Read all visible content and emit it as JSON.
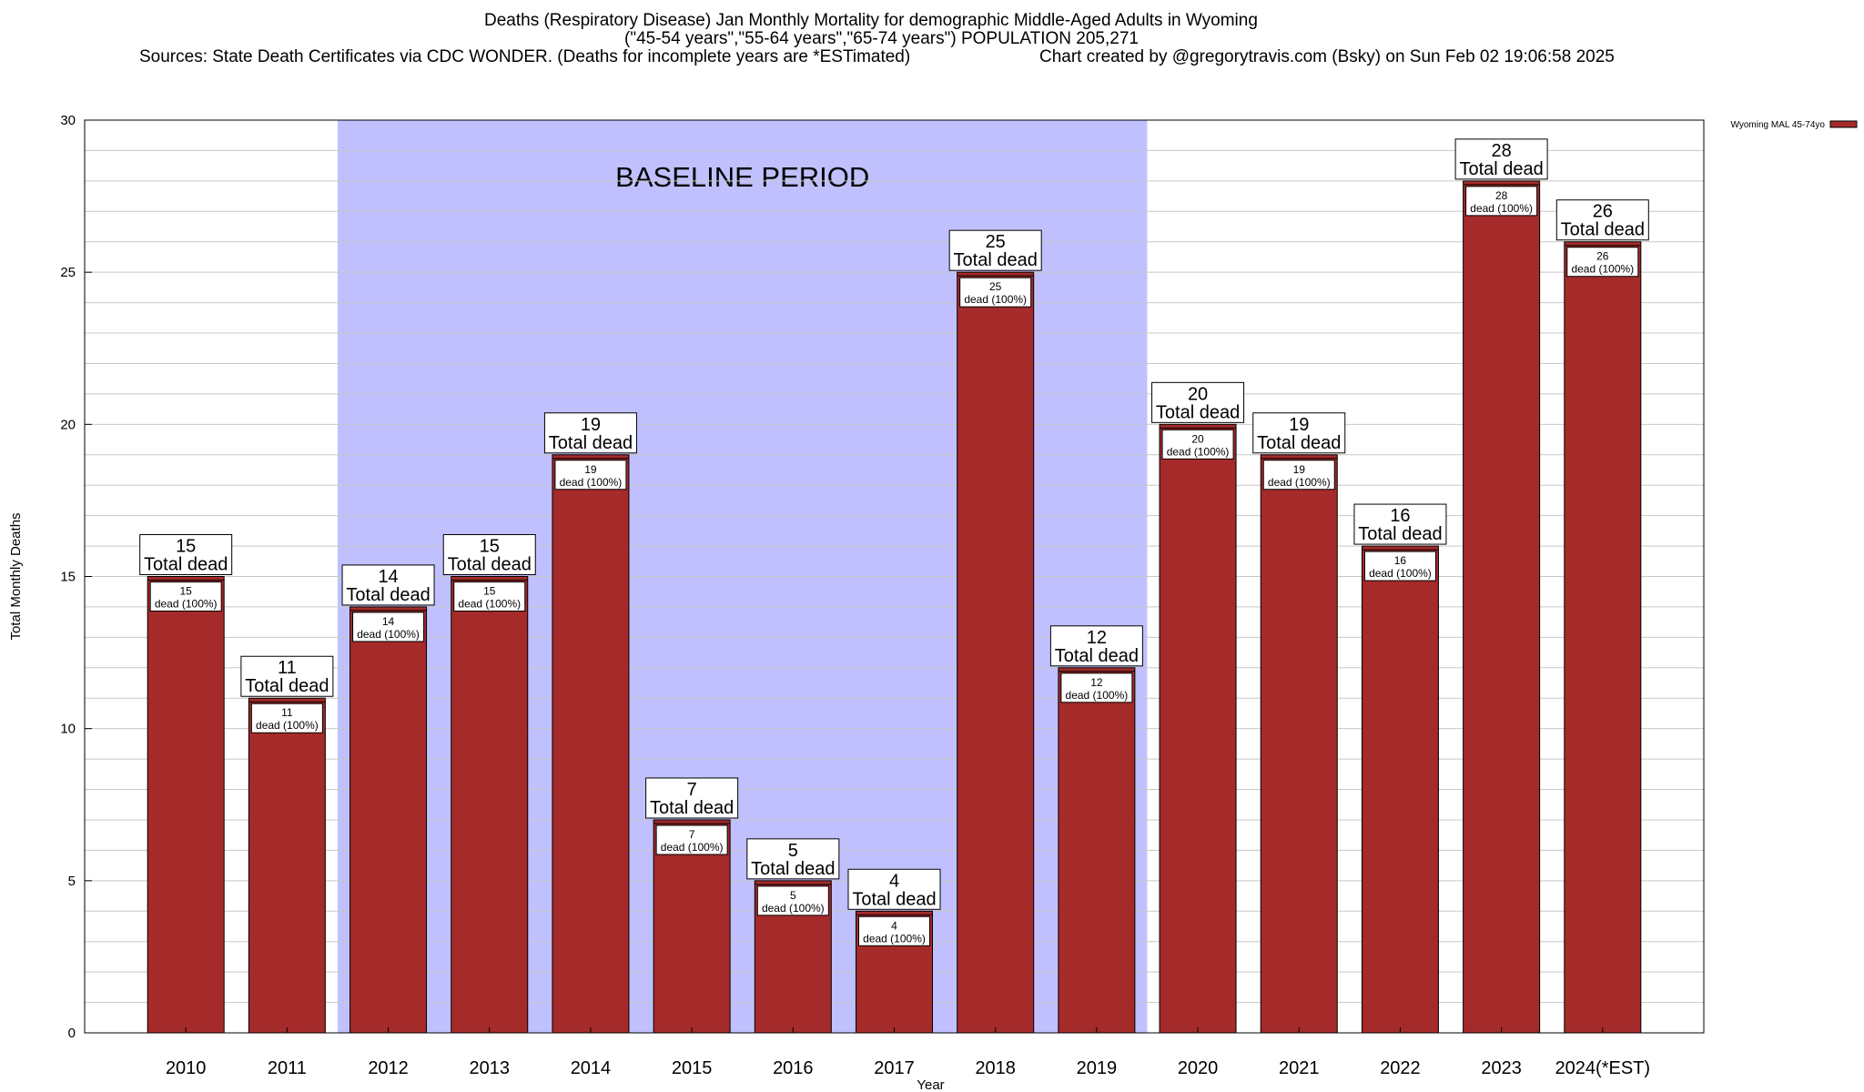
{
  "header": {
    "title_line1": "Deaths (Respiratory Disease) Jan Monthly Mortality for demographic Middle-Aged Adults in Wyoming",
    "title_line2": "(\"45-54 years\",\"55-64 years\",\"65-74 years\") POPULATION 205,271",
    "sources": "Sources: State Death Certificates via CDC WONDER. (Deaths for incomplete years are *ESTimated)",
    "credit": "Chart created by @gregorytravis.com (Bsky) on Sun Feb 02 19:06:58 2025"
  },
  "colors": {
    "bar": "#a52a2a",
    "baseline_band": "#c0c0ff",
    "grid": "#c8c8c8"
  },
  "chart_data": {
    "type": "bar",
    "xlabel": "Year",
    "ylabel": "Total Monthly Deaths",
    "ylim": [
      0,
      30
    ],
    "yticks": [
      0,
      5,
      10,
      15,
      20,
      25,
      30
    ],
    "grid": true,
    "legend": {
      "position": "top-right",
      "label": "Wyoming MAL 45-74yo"
    },
    "baseline": {
      "label": "BASELINE PERIOD",
      "from": "2012",
      "to": "2019"
    },
    "categories": [
      "2010",
      "2011",
      "2012",
      "2013",
      "2014",
      "2015",
      "2016",
      "2017",
      "2018",
      "2019",
      "2020",
      "2021",
      "2022",
      "2023",
      "2024(*EST)"
    ],
    "values": [
      15,
      11,
      14,
      15,
      19,
      7,
      5,
      4,
      25,
      12,
      20,
      19,
      16,
      28,
      26
    ],
    "label_total_text": "Total dead",
    "label_inner_text": "dead (100%)"
  }
}
